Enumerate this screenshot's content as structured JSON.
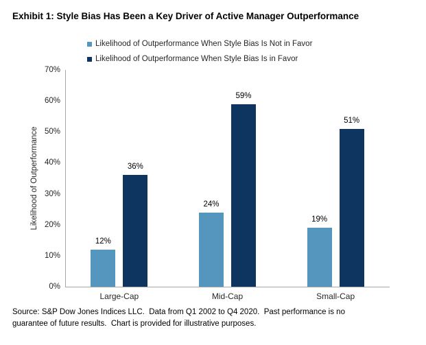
{
  "page": {
    "title": "Exhibit 1: Style Bias Has Been a Key Driver of Active Manager Outperformance",
    "source_note": "Source: S&P Dow Jones Indices LLC.  Data from Q1 2002 to Q4 2020.  Past performance is no guarantee of future results.  Chart is provided for illustrative purposes."
  },
  "chart_data": {
    "type": "bar",
    "title": "Exhibit 1: Style Bias Has Been a Key Driver of Active Manager Outperformance",
    "categories": [
      "Large-Cap",
      "Mid-Cap",
      "Small-Cap"
    ],
    "series": [
      {
        "name": "Likelihood of Outperformance When Style Bias Is Not in Favor",
        "color": "#5596BE",
        "values": [
          12,
          24,
          19
        ]
      },
      {
        "name": "Likelihood of Outperformance When Style Bias Is in Favor",
        "color": "#0E3560",
        "values": [
          36,
          59,
          51
        ]
      }
    ],
    "xlabel": "",
    "ylabel": "Likelihood of Outperformance",
    "ylim": [
      0,
      70
    ],
    "ytick_step": 10,
    "ytick_suffix": "%",
    "value_suffix": "%",
    "grid": false,
    "legend_position": "top",
    "data_labels": true,
    "axis_color": "#a6a6a6"
  }
}
